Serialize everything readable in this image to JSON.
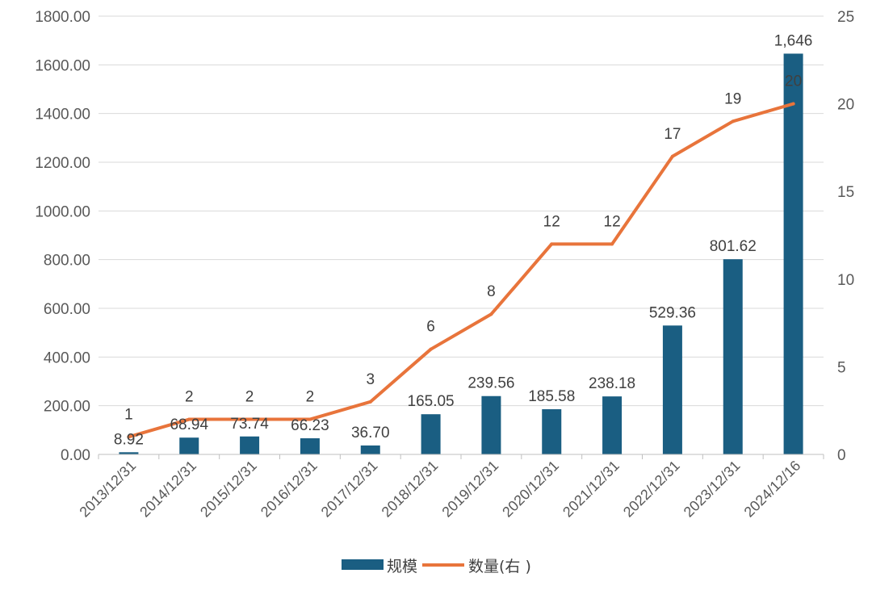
{
  "chart_data": {
    "type": "bar+line",
    "categories": [
      "2013/12/31",
      "2014/12/31",
      "2015/12/31",
      "2016/12/31",
      "2017/12/31",
      "2018/12/31",
      "2019/12/31",
      "2020/12/31",
      "2021/12/31",
      "2022/12/31",
      "2023/12/31",
      "2024/12/16"
    ],
    "series": [
      {
        "name": "规模",
        "type": "bar",
        "axis": "left",
        "color": "#1a5e82",
        "values": [
          8.92,
          68.94,
          73.74,
          66.23,
          36.7,
          165.05,
          239.56,
          185.58,
          238.18,
          529.36,
          801.62,
          1646
        ],
        "labels": [
          "8.92",
          "68.94",
          "73.74",
          "66.23",
          "36.70",
          "165.05",
          "239.56",
          "185.58",
          "238.18",
          "529.36",
          "801.62",
          "1,646"
        ]
      },
      {
        "name": "数量(右 )",
        "type": "line",
        "axis": "right",
        "color": "#e8743b",
        "values": [
          1,
          2,
          2,
          2,
          3,
          6,
          8,
          12,
          12,
          17,
          19,
          20
        ],
        "labels": [
          "1",
          "2",
          "2",
          "2",
          "3",
          "6",
          "8",
          "12",
          "12",
          "17",
          "19",
          "20"
        ]
      }
    ],
    "y_left": {
      "range": [
        0,
        1800
      ],
      "ticks": [
        0,
        200,
        400,
        600,
        800,
        1000,
        1200,
        1400,
        1600,
        1800
      ],
      "tick_labels": [
        "0.00",
        "200.00",
        "400.00",
        "600.00",
        "800.00",
        "1000.00",
        "1200.00",
        "1400.00",
        "1600.00",
        "1800.00"
      ]
    },
    "y_right": {
      "range": [
        0,
        25
      ],
      "ticks": [
        0,
        5,
        10,
        15,
        20,
        25
      ],
      "tick_labels": [
        "0",
        "5",
        "10",
        "15",
        "20",
        "25"
      ]
    },
    "grid": true,
    "legend_position": "bottom-center",
    "legend": [
      "规模",
      "数量(右 )"
    ]
  }
}
